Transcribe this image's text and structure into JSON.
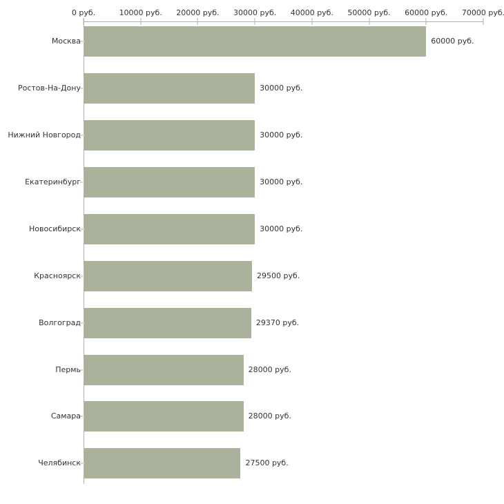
{
  "chart_data": {
    "type": "bar",
    "orientation": "horizontal",
    "title": "",
    "xlabel": "",
    "ylabel": "",
    "xlim": [
      0,
      70000
    ],
    "grid": false,
    "legend": null,
    "x_tick_values": [
      0,
      10000,
      20000,
      30000,
      40000,
      50000,
      60000,
      70000
    ],
    "x_tick_labels": [
      "0 руб.",
      "10000 руб.",
      "20000 руб.",
      "30000 руб.",
      "40000 руб.",
      "50000 руб.",
      "60000 руб.",
      "70000 руб."
    ],
    "categories": [
      "Москва",
      "Ростов-На-Дону",
      "Нижний Новгород",
      "Екатеринбург",
      "Новосибирск",
      "Красноярск",
      "Волгоград",
      "Пермь",
      "Самара",
      "Челябинск"
    ],
    "values": [
      60000,
      30000,
      30000,
      30000,
      30000,
      29500,
      29370,
      28000,
      28000,
      27500
    ],
    "value_labels": [
      "60000 руб.",
      "30000 руб.",
      "30000 руб.",
      "30000 руб.",
      "30000 руб.",
      "29500 руб.",
      "29370 руб.",
      "28000 руб.",
      "28000 руб.",
      "27500 руб."
    ],
    "colors": {
      "bar": "#abb29b",
      "axis_line": "#b0b0b0",
      "tick_mark": "#d8dcc0",
      "text": "#333333",
      "background": "#ffffff"
    }
  }
}
